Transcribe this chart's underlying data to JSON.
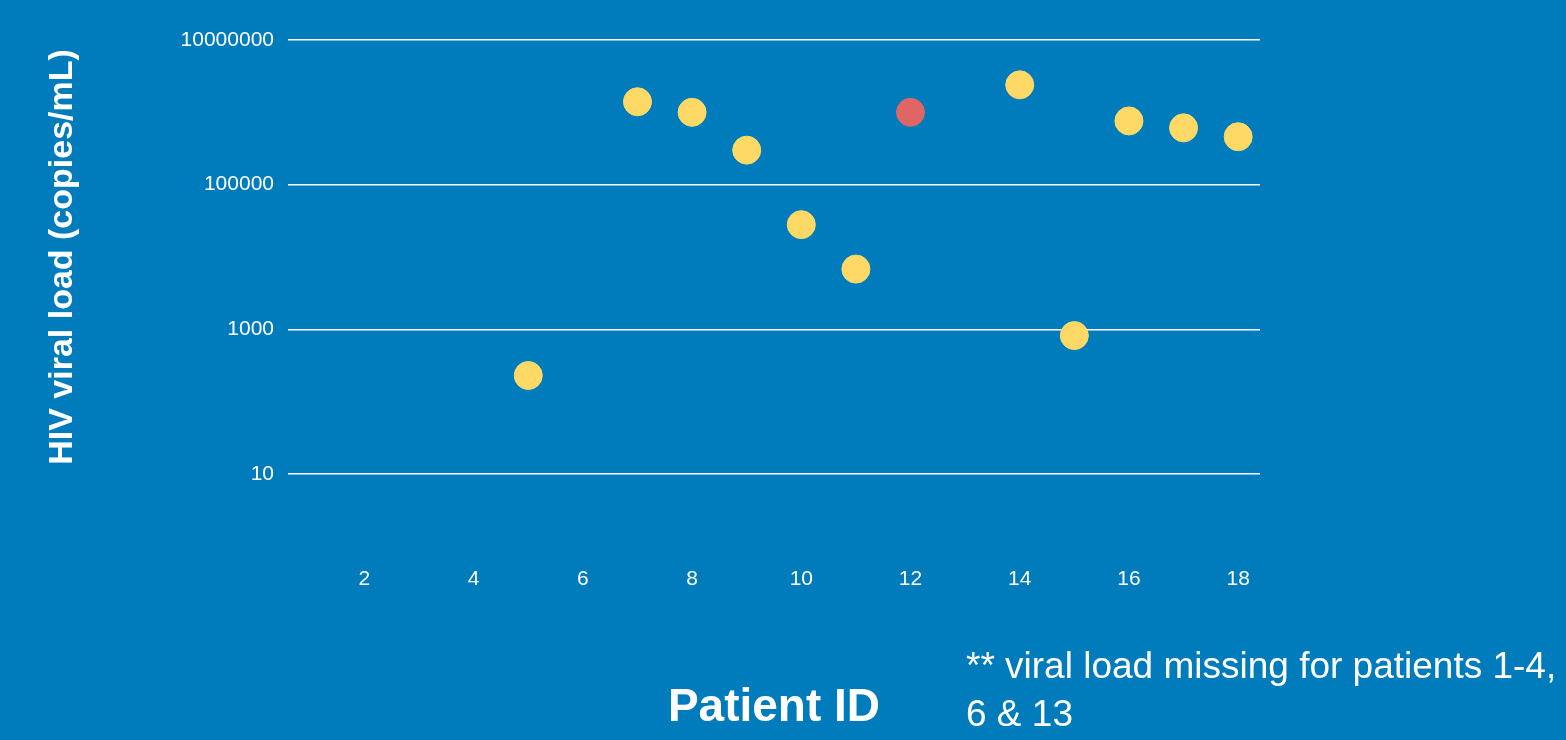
{
  "chart_data": {
    "type": "scatter",
    "xlabel": "Patient ID",
    "ylabel": "HIV viral load (copies/mL)",
    "annotations": [
      "** viral load missing for patients 1-4, 6 & 13"
    ],
    "series": [
      {
        "color": "#ffd966",
        "x": [
          5,
          7,
          8,
          9,
          10,
          11,
          14,
          15,
          16,
          17,
          18
        ],
        "values": [
          230,
          1400000,
          1000000,
          300000,
          28000,
          6800,
          2400000,
          820,
          760000,
          610000,
          460000
        ]
      },
      {
        "color": "#e06666",
        "x": [
          12
        ],
        "values": [
          1000000
        ]
      }
    ],
    "xlim": [
      0.6,
      18.4
    ],
    "xticks": [
      2,
      4,
      6,
      8,
      10,
      12,
      14,
      16,
      18
    ],
    "ylim": [
      10,
      10000000
    ],
    "yticks": [
      10,
      1000,
      100000,
      10000000
    ],
    "log": "y",
    "grid": "y",
    "legend": false,
    "marker": "circle"
  }
}
